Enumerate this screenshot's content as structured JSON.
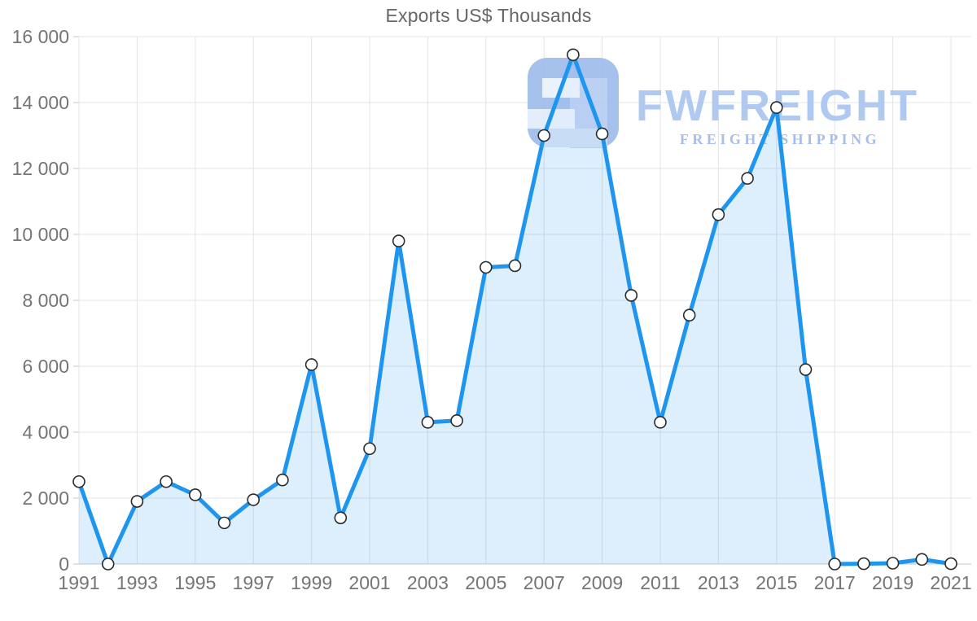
{
  "chart_data": {
    "type": "area",
    "title": "Exports US$ Thousands",
    "x": [
      1991,
      1992,
      1993,
      1994,
      1995,
      1996,
      1997,
      1998,
      1999,
      2000,
      2001,
      2002,
      2003,
      2004,
      2005,
      2006,
      2007,
      2008,
      2009,
      2010,
      2011,
      2012,
      2013,
      2014,
      2015,
      2016,
      2017,
      2018,
      2019,
      2020,
      2021
    ],
    "values": [
      2500,
      0,
      1900,
      2500,
      2100,
      1250,
      1950,
      2550,
      6050,
      1400,
      3500,
      9800,
      4300,
      4350,
      9000,
      9050,
      13000,
      15450,
      13050,
      8150,
      4300,
      7550,
      10600,
      11700,
      13850,
      5900,
      0,
      10,
      25,
      140,
      10
    ],
    "x_tick_labels": [
      "1991",
      "1993",
      "1995",
      "1997",
      "1999",
      "2001",
      "2003",
      "2005",
      "2007",
      "2009",
      "2011",
      "2013",
      "2015",
      "2017",
      "2019",
      "2021"
    ],
    "y_ticks": [
      0,
      2000,
      4000,
      6000,
      8000,
      10000,
      12000,
      14000,
      16000
    ],
    "y_tick_labels": [
      "0",
      "2 000",
      "4 000",
      "6 000",
      "8 000",
      "10 000",
      "12 000",
      "14 000",
      "16 000"
    ],
    "ylim": [
      0,
      16000
    ],
    "grid": true,
    "legend": "none",
    "line_color": "#1e96f0",
    "fill_color": "rgba(30,150,243,0.15)",
    "marker_style": "white-circle-dark-ring",
    "gridline_color": "#e4e4e4",
    "axis_line_color": "#c9c9c9",
    "label_color": "#757575",
    "title_color": "#666666"
  },
  "watermark": {
    "brand": "FWFREIGHT",
    "tagline": "FREIGHT SHIPPING",
    "brand_color": "#a8c4ef",
    "tagline_color": "#9fb8e8",
    "logo_color": "#9cbbeb",
    "logo_name": "fwfreight-3d-logo"
  }
}
